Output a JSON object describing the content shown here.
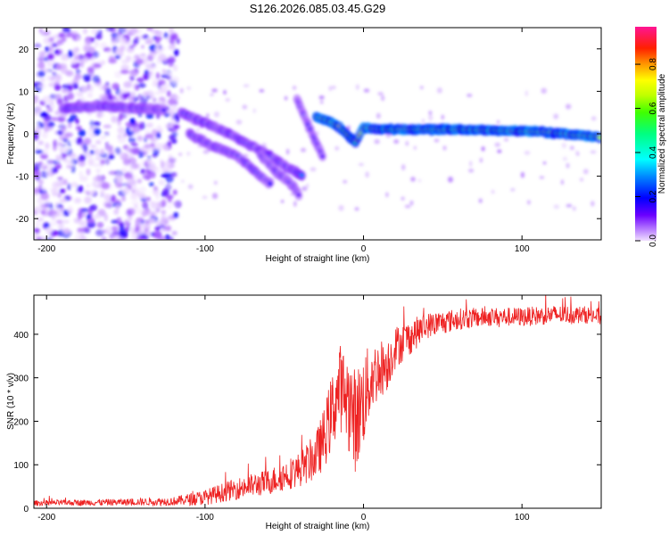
{
  "title": "S126.2026.085.03.45.G29",
  "chart_data": [
    {
      "type": "heatmap",
      "xlabel": "Height of straight line (km)",
      "ylabel": "Frequency (Hz)",
      "xlim": [
        -208,
        150
      ],
      "ylim": [
        -25,
        25
      ],
      "xticks": [
        -200,
        -100,
        0,
        100
      ],
      "yticks": [
        -20,
        -10,
        0,
        10,
        20
      ],
      "colorbar": {
        "label": "Normalized spectral amplitude",
        "range": [
          0,
          0.97
        ],
        "ticks": [
          0.0,
          0.2,
          0.4,
          0.6,
          0.8
        ],
        "colormap": [
          "#f0e0ff",
          "#8a2be2",
          "#0000ff",
          "#00ffff",
          "#00ff00",
          "#ffff00",
          "#ff8000",
          "#ff0000",
          "#ff1493"
        ]
      },
      "noise_region_km": [
        -208,
        -117
      ],
      "features": [
        {
          "name": "mode_flat_left",
          "points": [
            [
              -190,
              6
            ],
            [
              -165,
              6.5
            ],
            [
              -140,
              6
            ],
            [
              -125,
              5.5
            ]
          ],
          "amplitude": 0.28
        },
        {
          "name": "descending_1",
          "points": [
            [
              -115,
              5
            ],
            [
              -100,
              2.5
            ],
            [
              -85,
              0
            ],
            [
              -75,
              -2
            ],
            [
              -60,
              -5
            ],
            [
              -48,
              -8
            ],
            [
              -38,
              -10
            ]
          ],
          "amplitude": 0.3
        },
        {
          "name": "descending_2",
          "points": [
            [
              -110,
              0
            ],
            [
              -95,
              -3
            ],
            [
              -80,
              -5
            ],
            [
              -68,
              -9
            ],
            [
              -58,
              -12
            ]
          ],
          "amplitude": 0.25
        },
        {
          "name": "descending_3",
          "points": [
            [
              -65,
              -5
            ],
            [
              -55,
              -9
            ],
            [
              -45,
              -12
            ],
            [
              -40,
              -15
            ]
          ],
          "amplitude": 0.22
        },
        {
          "name": "steep_branch",
          "points": [
            [
              -42,
              8
            ],
            [
              -36,
              3
            ],
            [
              -30,
              -2
            ],
            [
              -25,
              -6
            ]
          ],
          "amplitude": 0.2
        },
        {
          "name": "main_tone",
          "points": [
            [
              -30,
              4
            ],
            [
              -22,
              3
            ],
            [
              -15,
              1.5
            ],
            [
              -8,
              -1
            ],
            [
              -5,
              -2
            ],
            [
              0,
              1.5
            ],
            [
              10,
              1
            ],
            [
              60,
              1
            ],
            [
              110,
              0.5
            ],
            [
              150,
              -0.8
            ]
          ],
          "amplitude": 0.9
        }
      ]
    },
    {
      "type": "line",
      "xlabel": "Height of straight line (km)",
      "ylabel": "SNR (10 * v/v)",
      "xlim": [
        -208,
        150
      ],
      "ylim": [
        0,
        490
      ],
      "xticks": [
        -200,
        -100,
        0,
        100
      ],
      "yticks": [
        0,
        100,
        200,
        300,
        400
      ],
      "series": [
        {
          "color": "#ee2222",
          "envelope_x": [
            -208,
            -150,
            -120,
            -100,
            -80,
            -60,
            -40,
            -30,
            -25,
            -20,
            -15,
            -10,
            -5,
            0,
            5,
            10,
            15,
            20,
            30,
            40,
            60,
            80,
            100,
            120,
            140,
            150
          ],
          "envelope_y": [
            12,
            14,
            16,
            25,
            45,
            60,
            90,
            120,
            160,
            220,
            280,
            250,
            200,
            250,
            300,
            320,
            330,
            370,
            395,
            420,
            435,
            440,
            440,
            445,
            445,
            440
          ],
          "noise_y": [
            6,
            8,
            10,
            18,
            25,
            30,
            40,
            55,
            70,
            90,
            100,
            110,
            120,
            110,
            80,
            70,
            60,
            50,
            40,
            30,
            25,
            22,
            22,
            22,
            20,
            20
          ]
        }
      ]
    }
  ]
}
